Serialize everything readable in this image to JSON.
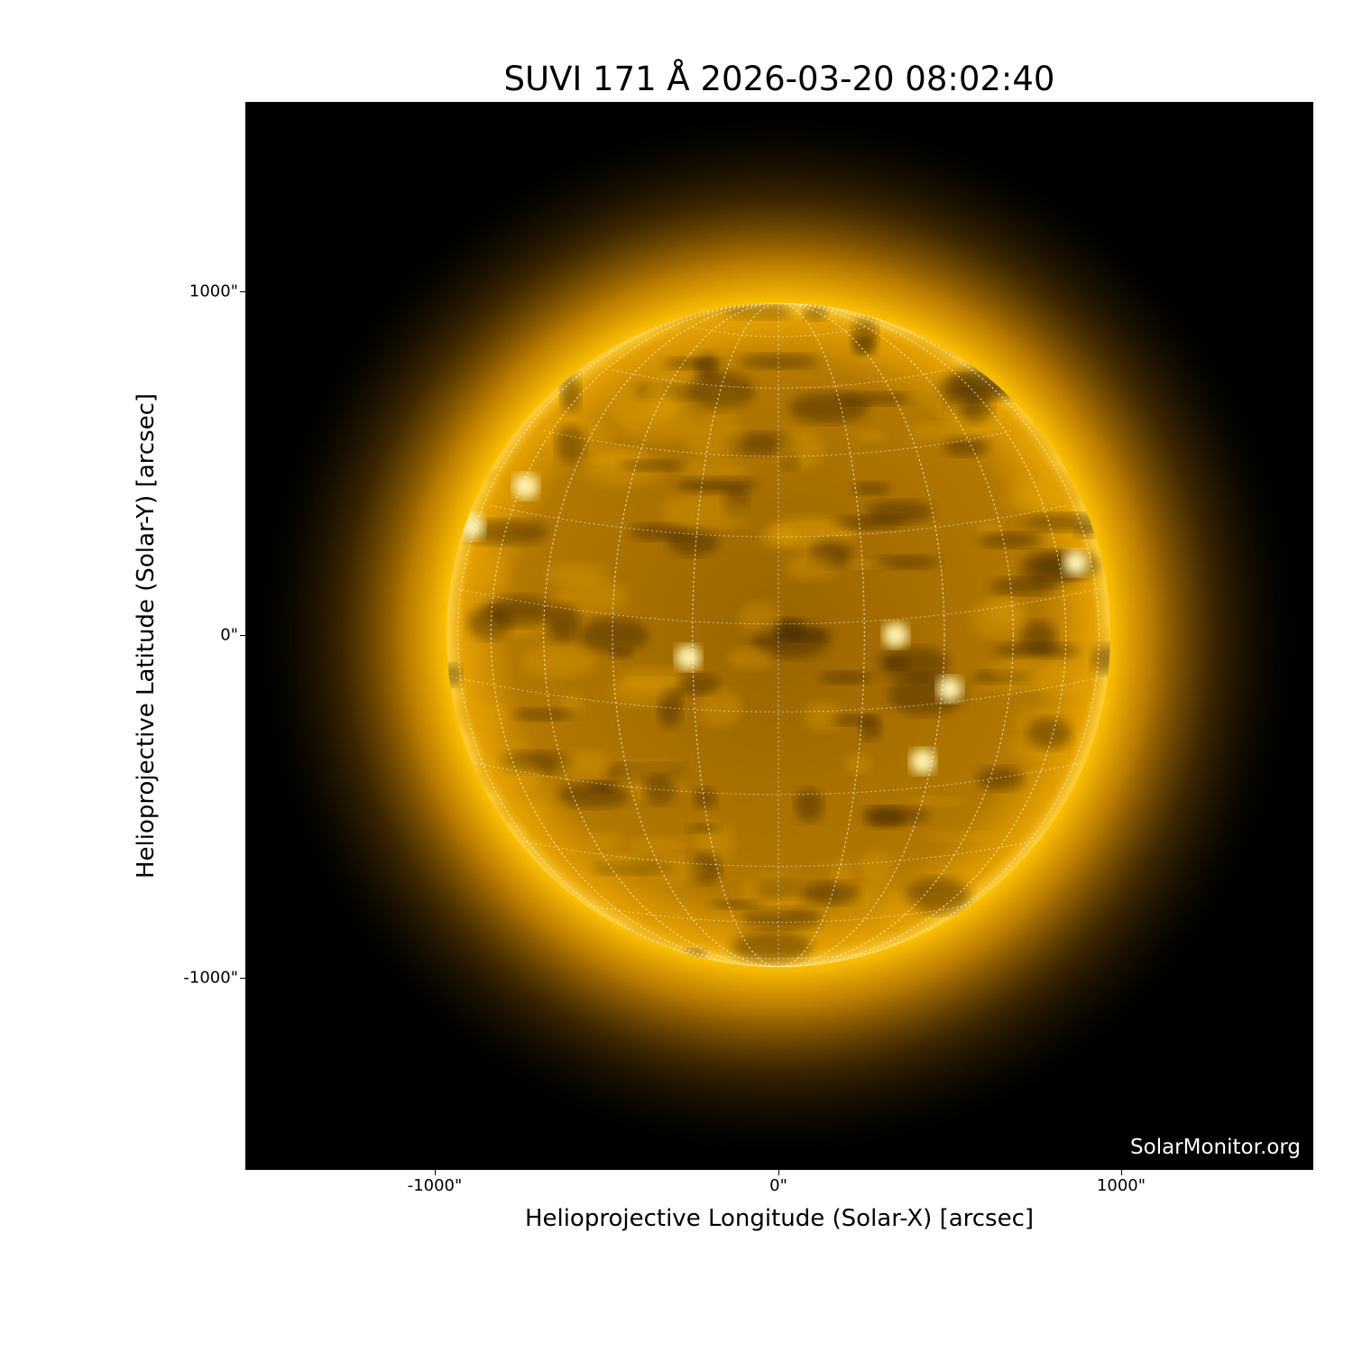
{
  "title": "SUVI 171 Å 2026-03-20 08:02:40",
  "xlabel": "Helioprojective Longitude (Solar-X) [arcsec]",
  "ylabel": "Helioprojective Latitude (Solar-Y) [arcsec]",
  "x_ticks": [
    "-1000\"",
    "0\"",
    "1000\""
  ],
  "y_ticks": [
    "1000\"",
    "0\"",
    "-1000\""
  ],
  "x_tick_values": [
    -1000,
    0,
    1000
  ],
  "y_tick_values": [
    1000,
    0,
    -1000
  ],
  "axis_range_arcsec": [
    -1555,
    1555
  ],
  "watermark": "SolarMonitor.org",
  "colors": {
    "background": "#000000",
    "sun": "#e8a000",
    "corona": "#ffb300",
    "grid": "#ffffff"
  },
  "heliographic_grid": true
}
